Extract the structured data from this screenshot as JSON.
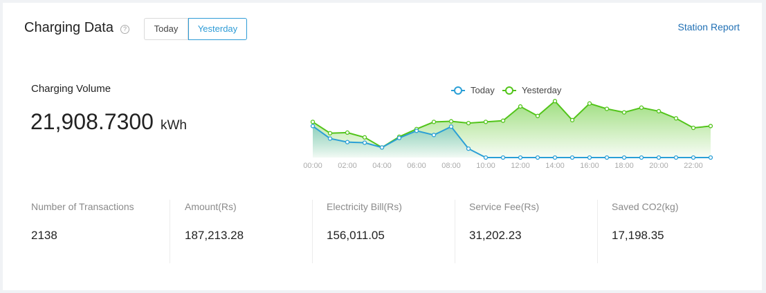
{
  "header": {
    "title": "Charging Data",
    "help_icon": "question-circle-icon",
    "tabs": [
      "Today",
      "Yesterday"
    ],
    "active_tab": "Yesterday",
    "report_link": "Station Report"
  },
  "volume": {
    "label": "Charging Volume",
    "value": "21,908.7300",
    "unit": "kWh"
  },
  "stats": [
    {
      "label": "Number of Transactions",
      "value": "2138"
    },
    {
      "label": "Amount(Rs)",
      "value": "187,213.28"
    },
    {
      "label": "Electricity Bill(Rs)",
      "value": "156,011.05"
    },
    {
      "label": "Service Fee(Rs)",
      "value": "31,202.23"
    },
    {
      "label": "Saved CO2(kg)",
      "value": "17,198.35"
    }
  ],
  "chart_data": {
    "type": "line",
    "x": [
      "00:00",
      "01:00",
      "02:00",
      "03:00",
      "04:00",
      "05:00",
      "06:00",
      "07:00",
      "08:00",
      "09:00",
      "10:00",
      "11:00",
      "12:00",
      "13:00",
      "14:00",
      "15:00",
      "16:00",
      "17:00",
      "18:00",
      "19:00",
      "20:00",
      "21:00",
      "22:00",
      "23:00"
    ],
    "x_tick_labels": [
      "00:00",
      "02:00",
      "04:00",
      "06:00",
      "08:00",
      "10:00",
      "12:00",
      "14:00",
      "16:00",
      "18:00",
      "20:00",
      "22:00"
    ],
    "ylim": [
      0,
      100
    ],
    "grid": false,
    "legend_position": "top-center",
    "series": [
      {
        "name": "Today",
        "color": "#2a9fd6",
        "area": false,
        "values": [
          53,
          32,
          26,
          25,
          17,
          33,
          45,
          38,
          52,
          15,
          0,
          0,
          0,
          0,
          0,
          0,
          0,
          0,
          0,
          0,
          0,
          0,
          0,
          0
        ]
      },
      {
        "name": "Yesterday",
        "color": "#52c41a",
        "area": true,
        "values": [
          60,
          41,
          42,
          34,
          17,
          35,
          48,
          60,
          61,
          58,
          60,
          62,
          86,
          70,
          95,
          63,
          91,
          82,
          76,
          84,
          78,
          66,
          50,
          53
        ]
      }
    ]
  }
}
